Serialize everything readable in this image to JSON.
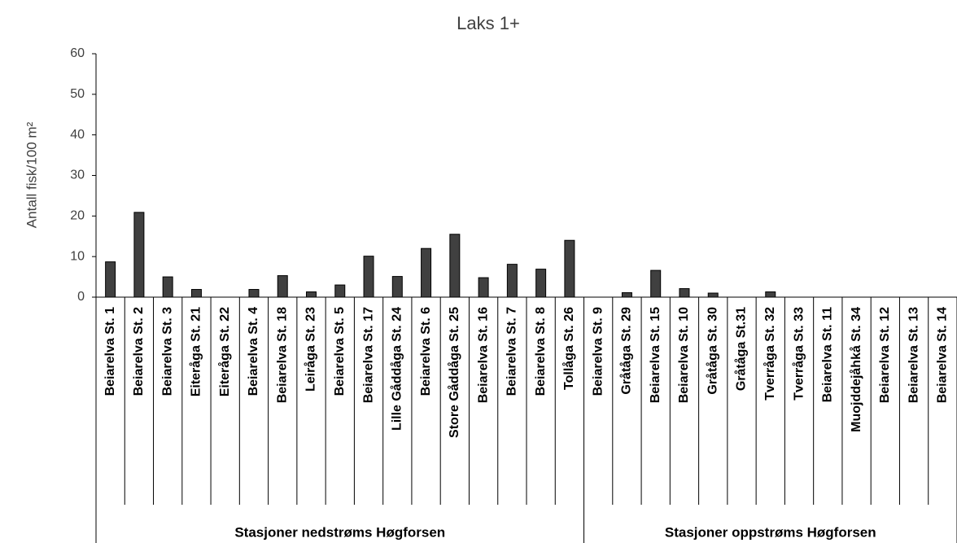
{
  "chart_data": {
    "type": "bar",
    "title": "Laks 1+",
    "y_label": "Antall fisk/100 m²",
    "color": "#404040",
    "ylim": [
      0,
      60
    ],
    "yticks": [
      0,
      10,
      20,
      30,
      40,
      50,
      60
    ],
    "grid": false,
    "groups": [
      {
        "name": "Stasjoner nedstrøms Høgforsen",
        "categories": [
          "Beiarelva St. 1",
          "Beiarelva St. 2",
          "Beiarelva St. 3",
          "Eiteråga St. 21",
          "Eiteråga St. 22",
          "Beiarelva St. 4",
          "Beiarelva St. 18",
          "Leiråga St. 23",
          "Beiarelva St. 5",
          "Beiarelva St. 17",
          "Lille Gåddåga St. 24",
          "Beiarelva St. 6",
          "Store Gåddåga St. 25",
          "Beiarelva St. 16",
          "Beiarelva St. 7",
          "Beiarelva St. 8",
          "Tollåga St. 26"
        ],
        "values": [
          8.7,
          20.9,
          5,
          1.9,
          0,
          1.9,
          5.3,
          1.3,
          3,
          10.1,
          5.1,
          12,
          15.5,
          4.8,
          8.1,
          6.9,
          14
        ]
      },
      {
        "name": "Stasjoner oppstrøms Høgforsen",
        "categories": [
          "Beiarelva St. 9",
          "Gråtåga St. 29",
          "Beiarelva St. 15",
          "Beiarelva St. 10",
          "Gråtåga St. 30",
          "Gråtåga St.31",
          "Tverråga St. 32",
          "Tverråga St. 33",
          "Beiarelva St. 11",
          "Muojddejåhkå St. 34",
          "Beiarelva St. 12",
          "Beiarelva St. 13",
          "Beiarelva St. 14"
        ],
        "values": [
          0,
          1.1,
          6.6,
          2.1,
          1,
          0,
          1.3,
          0,
          0,
          0,
          0,
          0,
          0
        ]
      }
    ]
  }
}
